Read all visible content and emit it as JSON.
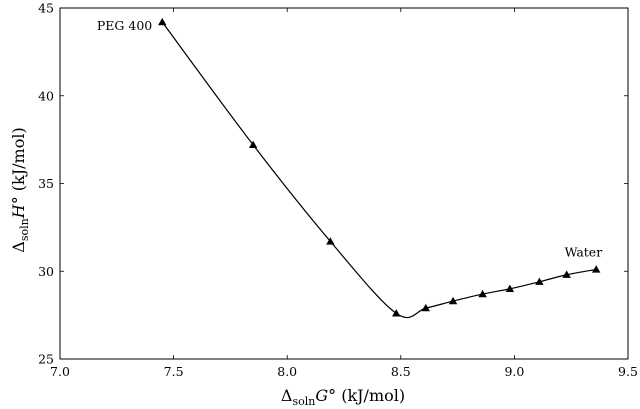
{
  "chart_data": {
    "type": "line",
    "title": "",
    "xlabel": {
      "prefix": "Δ",
      "sub": "soln",
      "symbol": "G°",
      "unit": " (kJ/mol)"
    },
    "ylabel": {
      "prefix": "Δ",
      "sub": "soln",
      "symbol": "H°",
      "unit": " (kJ/mol)"
    },
    "xlim": [
      7.0,
      9.5
    ],
    "ylim": [
      25,
      45
    ],
    "xticks": [
      "7.0",
      "7.5",
      "8.0",
      "8.5",
      "9.0",
      "9.5"
    ],
    "yticks": [
      "25",
      "30",
      "35",
      "40",
      "45"
    ],
    "grid": false,
    "marker": "triangle",
    "series": [
      {
        "x": [
          7.45,
          7.85,
          8.19,
          8.48,
          8.61,
          8.73,
          8.86,
          8.98,
          9.11,
          9.23,
          9.36
        ],
        "y": [
          44.2,
          37.2,
          31.7,
          27.6,
          27.9,
          28.3,
          28.7,
          29.0,
          29.4,
          29.8,
          30.1
        ]
      }
    ],
    "annotations": [
      {
        "text": "PEG 400",
        "point_index": 0,
        "anchor": "left"
      },
      {
        "text": "Water",
        "point_index": 10,
        "anchor": "above"
      }
    ]
  }
}
